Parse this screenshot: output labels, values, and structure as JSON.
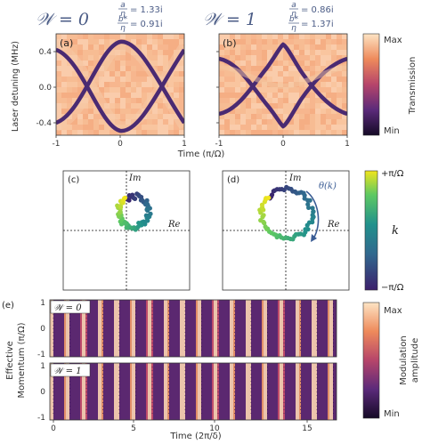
{
  "colors": {
    "magma_low": "#150a26",
    "magma_mid1": "#5b2a7a",
    "magma_mid2": "#b6456a",
    "magma_mid3": "#ee8a5b",
    "magma_high": "#fde4c4",
    "viridis_low": "#3b1f6b",
    "viridis_mid": "#21918c",
    "viridis_high": "#f1e51d",
    "header_text": "#4b5c86"
  },
  "top": {
    "panel_a": {
      "label": "(a)",
      "winding": "𝒲 = 0",
      "ratio1_num": "a",
      "ratio1_den": "η",
      "ratio1_val": "= 1.33i",
      "ratio2_num": "b*",
      "ratio2_den": "η",
      "ratio2_val": "= 0.91i"
    },
    "panel_b": {
      "label": "(b)",
      "winding": "𝒲 = 1",
      "ratio1_num": "a",
      "ratio1_den": "η",
      "ratio1_val": "= 0.86i",
      "ratio2_num": "b*",
      "ratio2_den": "η",
      "ratio2_val": "= 1.37i"
    },
    "y_axis_label": "Laser detuning (MHz)",
    "y_ticks": [
      "0.4",
      "0.0",
      "-0.4"
    ],
    "x_axis_label": "Time (π/Ω)",
    "x_ticks_a": [
      "-1",
      "0",
      "1"
    ],
    "x_ticks_b": [
      "-1",
      "0",
      "1"
    ],
    "colorbar_label": "Transmission",
    "colorbar_max": "Max",
    "colorbar_min": "Min"
  },
  "middle": {
    "panel_c": {
      "label": "(c)",
      "im": "Im",
      "re": "Re"
    },
    "panel_d": {
      "label": "(d)",
      "im": "Im",
      "re": "Re",
      "theta": "θ(k)"
    },
    "colorbar_label": "k",
    "colorbar_top": "+π/Ω",
    "colorbar_bottom": "−π/Ω"
  },
  "bottom": {
    "label": "(e)",
    "strip1_tag": "𝒲 = 0",
    "strip2_tag": "𝒲 = 1",
    "y_axis_label_1": "Effective",
    "y_axis_label_2": "Momentum (π/Ω)",
    "y_ticks_1": [
      "1",
      "0",
      "-1"
    ],
    "y_ticks_2": [
      "1",
      "0",
      "-1"
    ],
    "x_axis_label": "Time (2π/δ)",
    "x_ticks": [
      "0",
      "5",
      "10",
      "15"
    ],
    "colorbar_label_1": "Modulation",
    "colorbar_label_2": "amplitude",
    "colorbar_max": "Max",
    "colorbar_min": "Min"
  }
}
